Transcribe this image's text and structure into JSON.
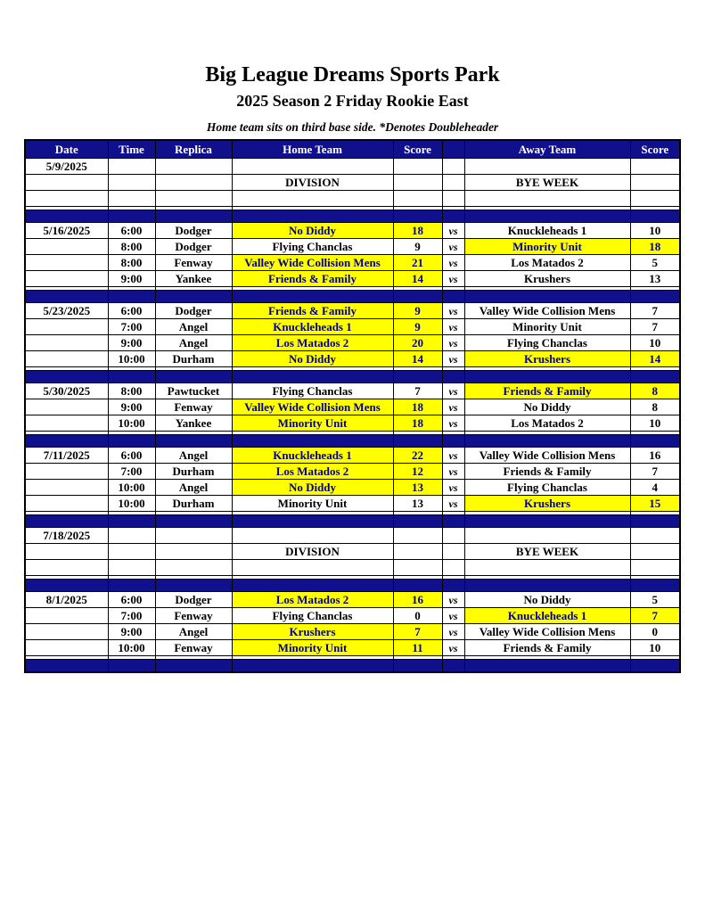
{
  "page": {
    "title": "Big League Dreams Sports Park",
    "subtitle": "2025 Season 2 Friday Rookie East",
    "note": "Home team sits on third base side.  *Denotes Doubleheader"
  },
  "colors": {
    "navy": "#10108C",
    "highlight": "#FFFF00",
    "highlight_text": "#00008B",
    "header_text": "#FFFFFF"
  },
  "table": {
    "columns": [
      "Date",
      "Time",
      "Replica",
      "Home Team",
      "Score",
      "",
      "Away Team",
      "Score"
    ],
    "vs_label": "vs",
    "rows": [
      {
        "type": "date",
        "date": "5/9/2025"
      },
      {
        "type": "bye",
        "home": "DIVISION",
        "away": "BYE WEEK"
      },
      {
        "type": "empty"
      },
      {
        "type": "spacer"
      },
      {
        "type": "sep"
      },
      {
        "type": "game",
        "date": "5/16/2025",
        "time": "6:00",
        "replica": "Dodger",
        "home": "No Diddy",
        "home_score": "18",
        "away": "Knuckleheads 1",
        "away_score": "10",
        "home_win": true,
        "away_win": false
      },
      {
        "type": "game",
        "date": "",
        "time": "8:00",
        "replica": "Dodger",
        "home": "Flying Chanclas",
        "home_score": "9",
        "away": "Minority Unit",
        "away_score": "18",
        "home_win": false,
        "away_win": true
      },
      {
        "type": "game",
        "date": "",
        "time": "8:00",
        "replica": "Fenway",
        "home": "Valley Wide Collision Mens",
        "home_score": "21",
        "away": "Los Matados 2",
        "away_score": "5",
        "home_win": true,
        "away_win": false
      },
      {
        "type": "game",
        "date": "",
        "time": "9:00",
        "replica": "Yankee",
        "home": "Friends & Family",
        "home_score": "14",
        "away": "Krushers",
        "away_score": "13",
        "home_win": true,
        "away_win": false
      },
      {
        "type": "spacer"
      },
      {
        "type": "sep"
      },
      {
        "type": "game",
        "date": "5/23/2025",
        "time": "6:00",
        "replica": "Dodger",
        "home": "Friends & Family",
        "home_score": "9",
        "away": "Valley Wide Collision Mens",
        "away_score": "7",
        "home_win": true,
        "away_win": false
      },
      {
        "type": "game",
        "date": "",
        "time": "7:00",
        "replica": "Angel",
        "home": "Knuckleheads 1",
        "home_score": "9",
        "away": "Minority Unit",
        "away_score": "7",
        "home_win": true,
        "away_win": false
      },
      {
        "type": "game",
        "date": "",
        "time": "9:00",
        "replica": "Angel",
        "home": "Los Matados 2",
        "home_score": "20",
        "away": "Flying Chanclas",
        "away_score": "10",
        "home_win": true,
        "away_win": false
      },
      {
        "type": "game",
        "date": "",
        "time": "10:00",
        "replica": "Durham",
        "home": "No Diddy",
        "home_score": "14",
        "away": "Krushers",
        "away_score": "14",
        "home_win": true,
        "away_win": true
      },
      {
        "type": "spacer"
      },
      {
        "type": "sep"
      },
      {
        "type": "game",
        "date": "5/30/2025",
        "time": "8:00",
        "replica": "Pawtucket",
        "home": "Flying Chanclas",
        "home_score": "7",
        "away": "Friends & Family",
        "away_score": "8",
        "home_win": false,
        "away_win": true
      },
      {
        "type": "game",
        "date": "",
        "time": "9:00",
        "replica": "Fenway",
        "home": "Valley Wide Collision Mens",
        "home_score": "18",
        "away": "No Diddy",
        "away_score": "8",
        "home_win": true,
        "away_win": false
      },
      {
        "type": "game",
        "date": "",
        "time": "10:00",
        "replica": "Yankee",
        "home": "Minority Unit",
        "home_score": "18",
        "away": "Los Matados 2",
        "away_score": "10",
        "home_win": true,
        "away_win": false
      },
      {
        "type": "spacer"
      },
      {
        "type": "sep"
      },
      {
        "type": "game",
        "date": "7/11/2025",
        "time": "6:00",
        "replica": "Angel",
        "home": "Knuckleheads 1",
        "home_score": "22",
        "away": "Valley Wide Collision Mens",
        "away_score": "16",
        "home_win": true,
        "away_win": false
      },
      {
        "type": "game",
        "date": "",
        "time": "7:00",
        "replica": "Durham",
        "home": "Los Matados 2",
        "home_score": "12",
        "away": "Friends & Family",
        "away_score": "7",
        "home_win": true,
        "away_win": false
      },
      {
        "type": "game",
        "date": "",
        "time": "10:00",
        "replica": "Angel",
        "home": "No Diddy",
        "home_score": "13",
        "away": "Flying Chanclas",
        "away_score": "4",
        "home_win": true,
        "away_win": false
      },
      {
        "type": "game",
        "date": "",
        "time": "10:00",
        "replica": "Durham",
        "home": "Minority Unit",
        "home_score": "13",
        "away": "Krushers",
        "away_score": "15",
        "home_win": false,
        "away_win": true
      },
      {
        "type": "spacer"
      },
      {
        "type": "sep"
      },
      {
        "type": "date",
        "date": "7/18/2025"
      },
      {
        "type": "bye",
        "home": "DIVISION",
        "away": "BYE WEEK"
      },
      {
        "type": "empty"
      },
      {
        "type": "spacer"
      },
      {
        "type": "sep"
      },
      {
        "type": "game",
        "date": "8/1/2025",
        "time": "6:00",
        "replica": "Dodger",
        "home": "Los Matados 2",
        "home_score": "16",
        "away": "No Diddy",
        "away_score": "5",
        "home_win": true,
        "away_win": false
      },
      {
        "type": "game",
        "date": "",
        "time": "7:00",
        "replica": "Fenway",
        "home": "Flying Chanclas",
        "home_score": "0",
        "away": "Knuckleheads 1",
        "away_score": "7",
        "home_win": false,
        "away_win": true
      },
      {
        "type": "game",
        "date": "",
        "time": "9:00",
        "replica": "Angel",
        "home": "Krushers",
        "home_score": "7",
        "away": "Valley Wide Collision Mens",
        "away_score": "0",
        "home_win": true,
        "away_win": false
      },
      {
        "type": "game",
        "date": "",
        "time": "10:00",
        "replica": "Fenway",
        "home": "Minority Unit",
        "home_score": "11",
        "away": "Friends & Family",
        "away_score": "10",
        "home_win": true,
        "away_win": false
      },
      {
        "type": "spacer"
      },
      {
        "type": "sep"
      }
    ]
  }
}
